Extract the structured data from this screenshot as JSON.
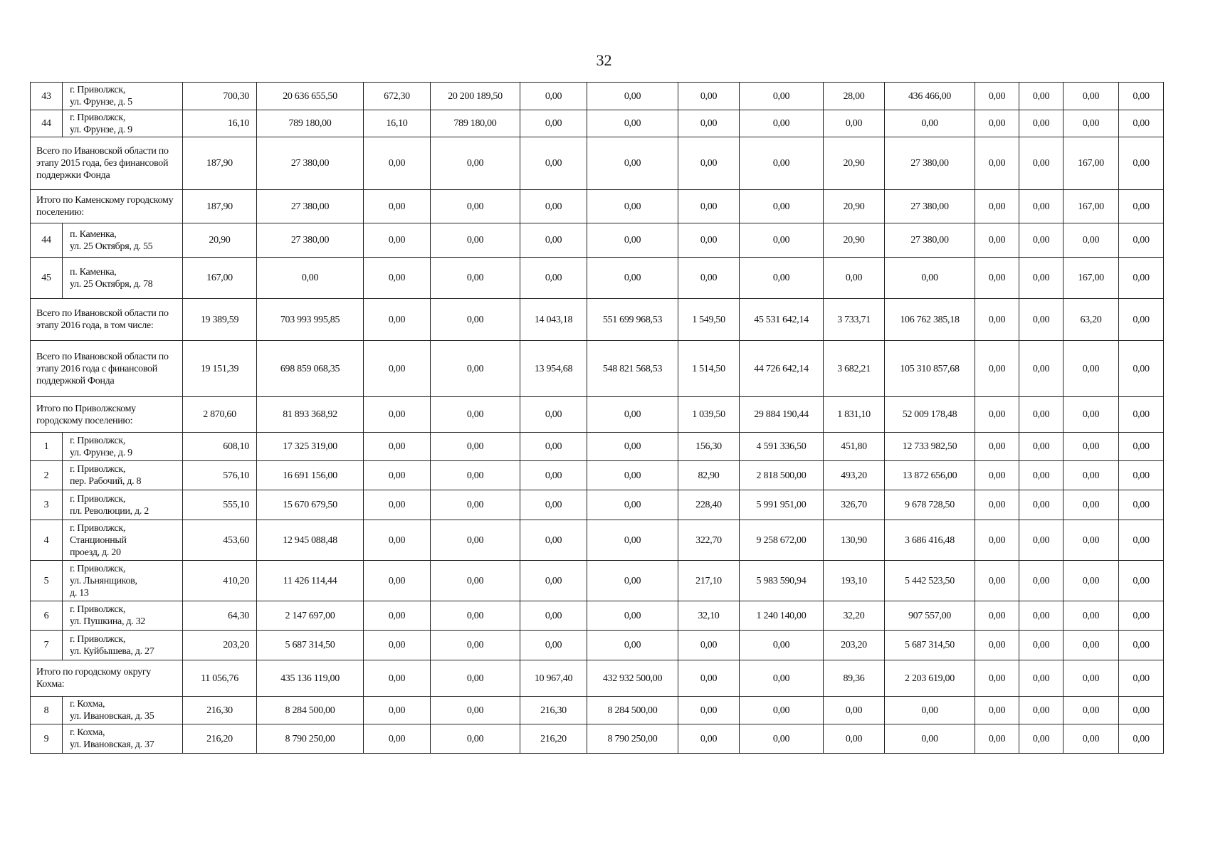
{
  "page_number": "32",
  "rows": [
    {
      "type": "item",
      "num": "43",
      "address": "г. Приволжск,\nул. Фрунзе, д. 5",
      "values": [
        "700,30",
        "20 636 655,50",
        "672,30",
        "20 200 189,50",
        "0,00",
        "0,00",
        "0,00",
        "0,00",
        "28,00",
        "436 466,00",
        "0,00",
        "0,00",
        "0,00",
        "0,00"
      ]
    },
    {
      "type": "item",
      "num": "44",
      "address": "г. Приволжск,\nул. Фрунзе, д. 9",
      "values": [
        "16,10",
        "789 180,00",
        "16,10",
        "789 180,00",
        "0,00",
        "0,00",
        "0,00",
        "0,00",
        "0,00",
        "0,00",
        "0,00",
        "0,00",
        "0,00",
        "0,00"
      ]
    },
    {
      "type": "total",
      "label": "Всего по Ивановской области по этапу 2015 года, без финансовой поддержки Фонда",
      "values": [
        "187,90",
        "27 380,00",
        "0,00",
        "0,00",
        "0,00",
        "0,00",
        "0,00",
        "0,00",
        "20,90",
        "27 380,00",
        "0,00",
        "0,00",
        "167,00",
        "0,00"
      ]
    },
    {
      "type": "total",
      "label": "Итого по  Каменскому городскому поселению:",
      "values": [
        "187,90",
        "27 380,00",
        "0,00",
        "0,00",
        "0,00",
        "0,00",
        "0,00",
        "0,00",
        "20,90",
        "27 380,00",
        "0,00",
        "0,00",
        "167,00",
        "0,00"
      ]
    },
    {
      "type": "item",
      "num": "44",
      "address": "п. Каменка,\nул. 25 Октября, д. 55",
      "values": [
        "20,90",
        "27 380,00",
        "0,00",
        "0,00",
        "0,00",
        "0,00",
        "0,00",
        "0,00",
        "20,90",
        "27 380,00",
        "0,00",
        "0,00",
        "0,00",
        "0,00"
      ]
    },
    {
      "type": "item",
      "num": "45",
      "address": "п. Каменка,\nул. 25 Октября, д. 78",
      "values": [
        "167,00",
        "0,00",
        "0,00",
        "0,00",
        "0,00",
        "0,00",
        "0,00",
        "0,00",
        "0,00",
        "0,00",
        "0,00",
        "0,00",
        "167,00",
        "0,00"
      ]
    },
    {
      "type": "total",
      "label": "Всего по Ивановской области по этапу 2016 года, в том числе:",
      "values": [
        "19 389,59",
        "703 993 995,85",
        "0,00",
        "0,00",
        "14 043,18",
        "551 699 968,53",
        "1 549,50",
        "45 531 642,14",
        "3 733,71",
        "106 762 385,18",
        "0,00",
        "0,00",
        "63,20",
        "0,00"
      ]
    },
    {
      "type": "total",
      "label": "Всего по Ивановской области по этапу 2016 года с финансовой поддержкой Фонда",
      "values": [
        "19 151,39",
        "698 859 068,35",
        "0,00",
        "0,00",
        "13 954,68",
        "548 821 568,53",
        "1 514,50",
        "44 726 642,14",
        "3 682,21",
        "105 310 857,68",
        "0,00",
        "0,00",
        "0,00",
        "0,00"
      ]
    },
    {
      "type": "total",
      "label": "Итого по Приволжскому городскому поселению:",
      "values": [
        "2 870,60",
        "81 893 368,92",
        "0,00",
        "0,00",
        "0,00",
        "0,00",
        "1 039,50",
        "29 884 190,44",
        "1 831,10",
        "52 009 178,48",
        "0,00",
        "0,00",
        "0,00",
        "0,00"
      ]
    },
    {
      "type": "item",
      "num": "1",
      "address": "г. Приволжск,\nул. Фрунзе, д. 9",
      "values": [
        "608,10",
        "17 325 319,00",
        "0,00",
        "0,00",
        "0,00",
        "0,00",
        "156,30",
        "4 591 336,50",
        "451,80",
        "12 733 982,50",
        "0,00",
        "0,00",
        "0,00",
        "0,00"
      ]
    },
    {
      "type": "item",
      "num": "2",
      "address": "г. Приволжск,\nпер. Рабочий, д. 8",
      "values": [
        "576,10",
        "16 691 156,00",
        "0,00",
        "0,00",
        "0,00",
        "0,00",
        "82,90",
        "2 818 500,00",
        "493,20",
        "13 872 656,00",
        "0,00",
        "0,00",
        "0,00",
        "0,00"
      ]
    },
    {
      "type": "item",
      "num": "3",
      "address": "г. Приволжск,\nпл. Революции, д. 2",
      "values": [
        "555,10",
        "15 670 679,50",
        "0,00",
        "0,00",
        "0,00",
        "0,00",
        "228,40",
        "5 991 951,00",
        "326,70",
        "9 678 728,50",
        "0,00",
        "0,00",
        "0,00",
        "0,00"
      ]
    },
    {
      "type": "item",
      "num": "4",
      "address": "г. Приволжск,\nСтанционный\nпроезд, д. 20",
      "values": [
        "453,60",
        "12 945 088,48",
        "0,00",
        "0,00",
        "0,00",
        "0,00",
        "322,70",
        "9 258 672,00",
        "130,90",
        "3 686 416,48",
        "0,00",
        "0,00",
        "0,00",
        "0,00"
      ]
    },
    {
      "type": "item",
      "num": "5",
      "address": "г. Приволжск,\nул. Льнянщиков,\nд. 13",
      "values": [
        "410,20",
        "11 426 114,44",
        "0,00",
        "0,00",
        "0,00",
        "0,00",
        "217,10",
        "5 983 590,94",
        "193,10",
        "5 442 523,50",
        "0,00",
        "0,00",
        "0,00",
        "0,00"
      ]
    },
    {
      "type": "item",
      "num": "6",
      "address": "г. Приволжск,\nул. Пушкина, д. 32",
      "values": [
        "64,30",
        "2 147 697,00",
        "0,00",
        "0,00",
        "0,00",
        "0,00",
        "32,10",
        "1 240 140,00",
        "32,20",
        "907 557,00",
        "0,00",
        "0,00",
        "0,00",
        "0,00"
      ]
    },
    {
      "type": "item",
      "num": "7",
      "address": "г. Приволжск,\nул. Куйбышева, д. 27",
      "values": [
        "203,20",
        "5 687 314,50",
        "0,00",
        "0,00",
        "0,00",
        "0,00",
        "0,00",
        "0,00",
        "203,20",
        "5 687 314,50",
        "0,00",
        "0,00",
        "0,00",
        "0,00"
      ]
    },
    {
      "type": "total",
      "label": "Итого по городскому округу Кохма:",
      "values": [
        "11 056,76",
        "435 136 119,00",
        "0,00",
        "0,00",
        "10 967,40",
        "432 932 500,00",
        "0,00",
        "0,00",
        "89,36",
        "2 203 619,00",
        "0,00",
        "0,00",
        "0,00",
        "0,00"
      ]
    },
    {
      "type": "item",
      "num": "8",
      "address": "г. Кохма,\nул. Ивановская, д. 35",
      "values": [
        "216,30",
        "8 284 500,00",
        "0,00",
        "0,00",
        "216,30",
        "8 284 500,00",
        "0,00",
        "0,00",
        "0,00",
        "0,00",
        "0,00",
        "0,00",
        "0,00",
        "0,00"
      ]
    },
    {
      "type": "item",
      "num": "9",
      "address": "г. Кохма,\nул. Ивановская, д. 37",
      "values": [
        "216,20",
        "8 790 250,00",
        "0,00",
        "0,00",
        "216,20",
        "8 790 250,00",
        "0,00",
        "0,00",
        "0,00",
        "0,00",
        "0,00",
        "0,00",
        "0,00",
        "0,00"
      ]
    }
  ]
}
